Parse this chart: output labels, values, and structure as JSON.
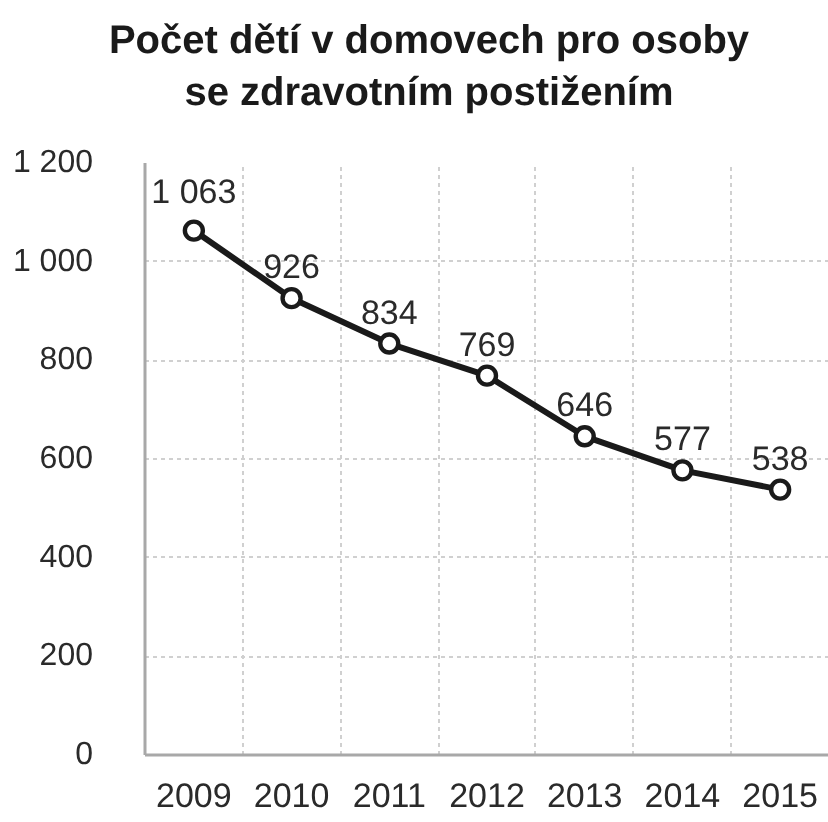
{
  "chart_data": {
    "type": "line",
    "title": "Počet dětí v domovech pro osoby\nse zdravotním postižením",
    "categories": [
      "2009",
      "2010",
      "2011",
      "2012",
      "2013",
      "2014",
      "2015"
    ],
    "values": [
      1063,
      926,
      834,
      769,
      646,
      577,
      538
    ],
    "color": "#1a1a1a",
    "value_labels": [
      "1 063",
      "926",
      "834",
      "769",
      "646",
      "577",
      "538"
    ],
    "ylim": [
      0,
      1200
    ],
    "yticks": [
      0,
      200,
      400,
      600,
      800,
      {
        "value": 1000,
        "label": "1 000"
      },
      {
        "value": 1200,
        "label": "1 200"
      }
    ],
    "grid": true,
    "marker": "circle",
    "line_style": "solid"
  }
}
